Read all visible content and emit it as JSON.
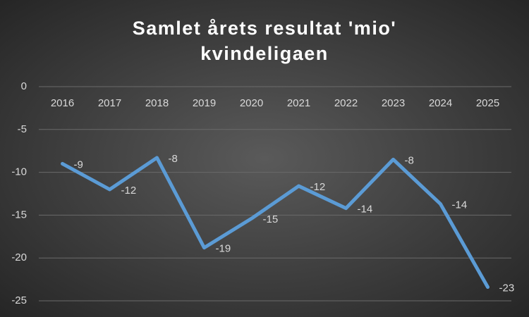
{
  "chart_data": {
    "type": "line",
    "title": [
      "Samlet årets resultat 'mio'",
      "kvindeligaen"
    ],
    "categories": [
      "2016",
      "2017",
      "2018",
      "2019",
      "2020",
      "2021",
      "2022",
      "2023",
      "2024",
      "2025"
    ],
    "series": [
      {
        "color": "#5b9bd5",
        "values": [
          -9.0,
          -12.0,
          -8.3,
          -18.8,
          -15.4,
          -11.6,
          -14.2,
          -8.5,
          -13.7,
          -23.4
        ],
        "value_labels": [
          "-9",
          "-12",
          "-8",
          "-19",
          "-15",
          "-12",
          "-14",
          "-8",
          "-14",
          "-23"
        ]
      }
    ],
    "ylim": [
      -25,
      0
    ],
    "yticks": [
      0,
      -5,
      -10,
      -15,
      -20,
      -25
    ],
    "grid": true
  }
}
